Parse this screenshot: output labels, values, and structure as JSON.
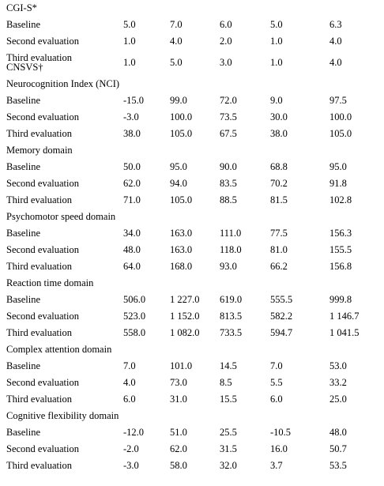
{
  "rows": [
    {
      "kind": "header",
      "label": "CGI-S*"
    },
    {
      "kind": "data",
      "label": "Baseline",
      "values": [
        "5.0",
        "7.0",
        "6.0",
        "5.0",
        "6.3"
      ]
    },
    {
      "kind": "data",
      "label": "Second evaluation",
      "values": [
        "1.0",
        "4.0",
        "2.0",
        "1.0",
        "4.0"
      ]
    },
    {
      "kind": "data2",
      "label": "Third evaluation",
      "label2": "CNSVS†",
      "values": [
        "1.0",
        "5.0",
        "3.0",
        "1.0",
        "4.0"
      ]
    },
    {
      "kind": "header",
      "label": "Neurocognition Index (NCI)"
    },
    {
      "kind": "data",
      "label": "Baseline",
      "values": [
        "-15.0",
        "99.0",
        "72.0",
        "9.0",
        "97.5"
      ]
    },
    {
      "kind": "data",
      "label": "Second evaluation",
      "values": [
        "-3.0",
        "100.0",
        "73.5",
        "30.0",
        "100.0"
      ]
    },
    {
      "kind": "data",
      "label": "Third evaluation",
      "values": [
        "38.0",
        "105.0",
        "67.5",
        "38.0",
        "105.0"
      ]
    },
    {
      "kind": "header",
      "label": "Memory domain"
    },
    {
      "kind": "data",
      "label": "Baseline",
      "values": [
        "50.0",
        "95.0",
        "90.0",
        "68.8",
        "95.0"
      ]
    },
    {
      "kind": "data",
      "label": "Second evaluation",
      "values": [
        "62.0",
        "94.0",
        "83.5",
        "70.2",
        "91.8"
      ]
    },
    {
      "kind": "data",
      "label": "Third evaluation",
      "values": [
        "71.0",
        "105.0",
        "88.5",
        "81.5",
        "102.8"
      ]
    },
    {
      "kind": "header",
      "label": "Psychomotor speed domain"
    },
    {
      "kind": "data",
      "label": "Baseline",
      "values": [
        "34.0",
        "163.0",
        "111.0",
        "77.5",
        "156.3"
      ]
    },
    {
      "kind": "data",
      "label": "Second evaluation",
      "values": [
        "48.0",
        "163.0",
        "118.0",
        "81.0",
        "155.5"
      ]
    },
    {
      "kind": "data",
      "label": "Third evaluation",
      "values": [
        "64.0",
        "168.0",
        "93.0",
        "66.2",
        "156.8"
      ]
    },
    {
      "kind": "header",
      "label": "Reaction time domain"
    },
    {
      "kind": "data",
      "label": "Baseline",
      "values": [
        "506.0",
        "1 227.0",
        "619.0",
        "555.5",
        "999.8"
      ]
    },
    {
      "kind": "data",
      "label": "Second evaluation",
      "values": [
        "523.0",
        "1 152.0",
        "813.5",
        "582.2",
        "1 146.7"
      ]
    },
    {
      "kind": "data",
      "label": "Third evaluation",
      "values": [
        "558.0",
        "1 082.0",
        "733.5",
        "594.7",
        "1 041.5"
      ]
    },
    {
      "kind": "header",
      "label": "Complex attention domain"
    },
    {
      "kind": "data",
      "label": "Baseline",
      "values": [
        "7.0",
        "101.0",
        "14.5",
        "7.0",
        "53.0"
      ]
    },
    {
      "kind": "data",
      "label": "Second evaluation",
      "values": [
        "4.0",
        "73.0",
        "8.5",
        "5.5",
        "33.2"
      ]
    },
    {
      "kind": "data",
      "label": "Third evaluation",
      "values": [
        "6.0",
        "31.0",
        "15.5",
        "6.0",
        "25.0"
      ]
    },
    {
      "kind": "header",
      "label": "Cognitive flexibility domain"
    },
    {
      "kind": "data",
      "label": "Baseline",
      "values": [
        "-12.0",
        "51.0",
        "25.5",
        "-10.5",
        "48.0"
      ]
    },
    {
      "kind": "data",
      "label": "Second evaluation",
      "values": [
        "-2.0",
        "62.0",
        "31.5",
        "16.0",
        "50.7"
      ]
    },
    {
      "kind": "data",
      "label": "Third evaluation",
      "values": [
        "-3.0",
        "58.0",
        "32.0",
        "3.7",
        "53.5"
      ]
    }
  ]
}
